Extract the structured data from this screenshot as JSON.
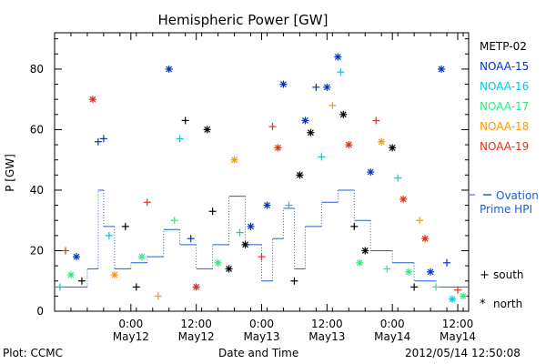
{
  "chart_data": {
    "type": "scatter",
    "title": "Hemispheric Power [GW]",
    "xlabel": "Date and Time",
    "ylabel": "P [GW]",
    "x_start": "2012-05-11 10:00",
    "x_end": "2012-05-14 14:00",
    "ylim": [
      0,
      92
    ],
    "y_ticks": [
      0,
      20,
      40,
      60,
      80
    ],
    "x_ticks": [
      {
        "time": "2012-05-12 00:00",
        "label1": "0:00",
        "label2": "May12"
      },
      {
        "time": "2012-05-12 12:00",
        "label1": "12:00",
        "label2": "May12"
      },
      {
        "time": "2012-05-13 00:00",
        "label1": "0:00",
        "label2": "May13"
      },
      {
        "time": "2012-05-13 12:00",
        "label1": "12:00",
        "label2": "May13"
      },
      {
        "time": "2012-05-14 00:00",
        "label1": "0:00",
        "label2": "May14"
      },
      {
        "time": "2012-05-14 12:00",
        "label1": "12:00",
        "label2": "May14"
      }
    ],
    "grid": false,
    "legend_position": "right",
    "satellites": [
      {
        "name": "METP-02",
        "color": "#000000"
      },
      {
        "name": "NOAA-15",
        "color": "#0033cc"
      },
      {
        "name": "NOAA-16",
        "color": "#00c8e6"
      },
      {
        "name": "NOAA-17",
        "color": "#33e680"
      },
      {
        "name": "NOAA-18",
        "color": "#ff9900"
      },
      {
        "name": "NOAA-19",
        "color": "#e62e1a"
      }
    ],
    "marker_legend": [
      {
        "symbol": "+",
        "label": "south"
      },
      {
        "symbol": "*",
        "label": "north"
      }
    ],
    "model_legend": {
      "line1": "Ovation",
      "line2": "Prime HPI",
      "color": "#1f5fd0"
    },
    "ovation_series": [
      {
        "time": "2012-05-11 10:00",
        "value": 8
      },
      {
        "time": "2012-05-11 16:00",
        "value": 14
      },
      {
        "time": "2012-05-11 18:00",
        "value": 40
      },
      {
        "time": "2012-05-11 19:00",
        "value": 28
      },
      {
        "time": "2012-05-11 21:00",
        "value": 14
      },
      {
        "time": "2012-05-12 00:00",
        "value": 16
      },
      {
        "time": "2012-05-12 03:00",
        "value": 18
      },
      {
        "time": "2012-05-12 06:00",
        "value": 27
      },
      {
        "time": "2012-05-12 09:00",
        "value": 22
      },
      {
        "time": "2012-05-12 12:00",
        "value": 14
      },
      {
        "time": "2012-05-12 15:00",
        "value": 22
      },
      {
        "time": "2012-05-12 18:00",
        "value": 38
      },
      {
        "time": "2012-05-12 21:00",
        "value": 22
      },
      {
        "time": "2012-05-13 00:00",
        "value": 10
      },
      {
        "time": "2012-05-13 02:00",
        "value": 24
      },
      {
        "time": "2012-05-13 04:00",
        "value": 34
      },
      {
        "time": "2012-05-13 06:00",
        "value": 14
      },
      {
        "time": "2012-05-13 08:00",
        "value": 28
      },
      {
        "time": "2012-05-13 11:00",
        "value": 36
      },
      {
        "time": "2012-05-13 14:00",
        "value": 40
      },
      {
        "time": "2012-05-13 17:00",
        "value": 30
      },
      {
        "time": "2012-05-13 20:00",
        "value": 20
      },
      {
        "time": "2012-05-14 00:00",
        "value": 16
      },
      {
        "time": "2012-05-14 04:00",
        "value": 10
      },
      {
        "time": "2012-05-14 08:00",
        "value": 8
      },
      {
        "time": "2012-05-14 14:00",
        "value": 8
      }
    ],
    "points": [
      {
        "t": "2012-05-11 11:00",
        "p": 8,
        "sat": "NOAA-16",
        "hemi": "south"
      },
      {
        "t": "2012-05-11 12:00",
        "p": 20,
        "sat": "NOAA-19",
        "hemi": "south"
      },
      {
        "t": "2012-05-11 13:00",
        "p": 12,
        "sat": "NOAA-17",
        "hemi": "north"
      },
      {
        "t": "2012-05-11 14:00",
        "p": 18,
        "sat": "NOAA-15",
        "hemi": "north"
      },
      {
        "t": "2012-05-11 15:00",
        "p": 10,
        "sat": "METP-02",
        "hemi": "south"
      },
      {
        "t": "2012-05-11 17:00",
        "p": 70,
        "sat": "NOAA-19",
        "hemi": "north"
      },
      {
        "t": "2012-05-11 18:00",
        "p": 56,
        "sat": "NOAA-15",
        "hemi": "south"
      },
      {
        "t": "2012-05-11 19:00",
        "p": 57,
        "sat": "NOAA-15",
        "hemi": "south"
      },
      {
        "t": "2012-05-11 20:00",
        "p": 25,
        "sat": "NOAA-16",
        "hemi": "south"
      },
      {
        "t": "2012-05-11 21:00",
        "p": 12,
        "sat": "NOAA-18",
        "hemi": "north"
      },
      {
        "t": "2012-05-11 23:00",
        "p": 28,
        "sat": "METP-02",
        "hemi": "south"
      },
      {
        "t": "2012-05-12 01:00",
        "p": 8,
        "sat": "METP-02",
        "hemi": "south"
      },
      {
        "t": "2012-05-12 02:00",
        "p": 18,
        "sat": "NOAA-17",
        "hemi": "north"
      },
      {
        "t": "2012-05-12 03:00",
        "p": 36,
        "sat": "NOAA-19",
        "hemi": "south"
      },
      {
        "t": "2012-05-12 05:00",
        "p": 5,
        "sat": "NOAA-18",
        "hemi": "south"
      },
      {
        "t": "2012-05-12 07:00",
        "p": 80,
        "sat": "NOAA-15",
        "hemi": "north"
      },
      {
        "t": "2012-05-12 08:00",
        "p": 30,
        "sat": "NOAA-17",
        "hemi": "south"
      },
      {
        "t": "2012-05-12 09:00",
        "p": 57,
        "sat": "NOAA-16",
        "hemi": "south"
      },
      {
        "t": "2012-05-12 10:00",
        "p": 63,
        "sat": "METP-02",
        "hemi": "south"
      },
      {
        "t": "2012-05-12 11:00",
        "p": 24,
        "sat": "NOAA-15",
        "hemi": "south"
      },
      {
        "t": "2012-05-12 12:00",
        "p": 8,
        "sat": "NOAA-19",
        "hemi": "north"
      },
      {
        "t": "2012-05-12 14:00",
        "p": 60,
        "sat": "METP-02",
        "hemi": "north"
      },
      {
        "t": "2012-05-12 15:00",
        "p": 33,
        "sat": "METP-02",
        "hemi": "south"
      },
      {
        "t": "2012-05-12 16:00",
        "p": 16,
        "sat": "NOAA-17",
        "hemi": "north"
      },
      {
        "t": "2012-05-12 18:00",
        "p": 14,
        "sat": "METP-02",
        "hemi": "north"
      },
      {
        "t": "2012-05-12 19:00",
        "p": 50,
        "sat": "NOAA-18",
        "hemi": "north"
      },
      {
        "t": "2012-05-12 20:00",
        "p": 26,
        "sat": "NOAA-16",
        "hemi": "south"
      },
      {
        "t": "2012-05-12 21:00",
        "p": 22,
        "sat": "METP-02",
        "hemi": "north"
      },
      {
        "t": "2012-05-12 22:00",
        "p": 28,
        "sat": "NOAA-15",
        "hemi": "north"
      },
      {
        "t": "2012-05-13 00:00",
        "p": 18,
        "sat": "NOAA-19",
        "hemi": "south"
      },
      {
        "t": "2012-05-13 01:00",
        "p": 35,
        "sat": "NOAA-15",
        "hemi": "north"
      },
      {
        "t": "2012-05-13 02:00",
        "p": 61,
        "sat": "NOAA-19",
        "hemi": "south"
      },
      {
        "t": "2012-05-13 03:00",
        "p": 54,
        "sat": "NOAA-19",
        "hemi": "north"
      },
      {
        "t": "2012-05-13 04:00",
        "p": 75,
        "sat": "NOAA-15",
        "hemi": "north"
      },
      {
        "t": "2012-05-13 05:00",
        "p": 35,
        "sat": "NOAA-16",
        "hemi": "south"
      },
      {
        "t": "2012-05-13 06:00",
        "p": 10,
        "sat": "METP-02",
        "hemi": "south"
      },
      {
        "t": "2012-05-13 07:00",
        "p": 45,
        "sat": "METP-02",
        "hemi": "north"
      },
      {
        "t": "2012-05-13 08:00",
        "p": 63,
        "sat": "NOAA-15",
        "hemi": "north"
      },
      {
        "t": "2012-05-13 09:00",
        "p": 59,
        "sat": "METP-02",
        "hemi": "north"
      },
      {
        "t": "2012-05-13 10:00",
        "p": 74,
        "sat": "NOAA-15",
        "hemi": "south"
      },
      {
        "t": "2012-05-13 11:00",
        "p": 51,
        "sat": "NOAA-16",
        "hemi": "south"
      },
      {
        "t": "2012-05-13 12:00",
        "p": 74,
        "sat": "NOAA-15",
        "hemi": "north"
      },
      {
        "t": "2012-05-13 13:00",
        "p": 68,
        "sat": "NOAA-18",
        "hemi": "south"
      },
      {
        "t": "2012-05-13 14:00",
        "p": 84,
        "sat": "NOAA-15",
        "hemi": "north"
      },
      {
        "t": "2012-05-13 14:30",
        "p": 79,
        "sat": "NOAA-16",
        "hemi": "south"
      },
      {
        "t": "2012-05-13 15:00",
        "p": 65,
        "sat": "METP-02",
        "hemi": "north"
      },
      {
        "t": "2012-05-13 16:00",
        "p": 55,
        "sat": "NOAA-19",
        "hemi": "north"
      },
      {
        "t": "2012-05-13 17:00",
        "p": 28,
        "sat": "METP-02",
        "hemi": "south"
      },
      {
        "t": "2012-05-13 18:00",
        "p": 16,
        "sat": "NOAA-17",
        "hemi": "north"
      },
      {
        "t": "2012-05-13 19:00",
        "p": 20,
        "sat": "METP-02",
        "hemi": "north"
      },
      {
        "t": "2012-05-13 20:00",
        "p": 46,
        "sat": "NOAA-15",
        "hemi": "north"
      },
      {
        "t": "2012-05-13 21:00",
        "p": 63,
        "sat": "NOAA-19",
        "hemi": "south"
      },
      {
        "t": "2012-05-13 22:00",
        "p": 56,
        "sat": "NOAA-18",
        "hemi": "north"
      },
      {
        "t": "2012-05-13 23:00",
        "p": 14,
        "sat": "NOAA-17",
        "hemi": "south"
      },
      {
        "t": "2012-05-14 00:00",
        "p": 54,
        "sat": "METP-02",
        "hemi": "north"
      },
      {
        "t": "2012-05-14 01:00",
        "p": 44,
        "sat": "NOAA-16",
        "hemi": "south"
      },
      {
        "t": "2012-05-14 02:00",
        "p": 37,
        "sat": "NOAA-19",
        "hemi": "north"
      },
      {
        "t": "2012-05-14 03:00",
        "p": 13,
        "sat": "NOAA-17",
        "hemi": "north"
      },
      {
        "t": "2012-05-14 04:00",
        "p": 8,
        "sat": "METP-02",
        "hemi": "south"
      },
      {
        "t": "2012-05-14 05:00",
        "p": 30,
        "sat": "NOAA-18",
        "hemi": "south"
      },
      {
        "t": "2012-05-14 06:00",
        "p": 24,
        "sat": "NOAA-19",
        "hemi": "north"
      },
      {
        "t": "2012-05-14 07:00",
        "p": 13,
        "sat": "NOAA-15",
        "hemi": "north"
      },
      {
        "t": "2012-05-14 08:00",
        "p": 8,
        "sat": "NOAA-17",
        "hemi": "south"
      },
      {
        "t": "2012-05-14 09:00",
        "p": 80,
        "sat": "NOAA-15",
        "hemi": "north"
      },
      {
        "t": "2012-05-14 10:00",
        "p": 16,
        "sat": "NOAA-15",
        "hemi": "south"
      },
      {
        "t": "2012-05-14 11:00",
        "p": 4,
        "sat": "NOAA-16",
        "hemi": "north"
      },
      {
        "t": "2012-05-14 12:00",
        "p": 7,
        "sat": "NOAA-19",
        "hemi": "south"
      },
      {
        "t": "2012-05-14 13:00",
        "p": 5,
        "sat": "NOAA-17",
        "hemi": "north"
      }
    ]
  },
  "footer": {
    "left": "Plot: CCMC",
    "center": "Date and Time",
    "right": "2012/05/14 12:50:08"
  }
}
